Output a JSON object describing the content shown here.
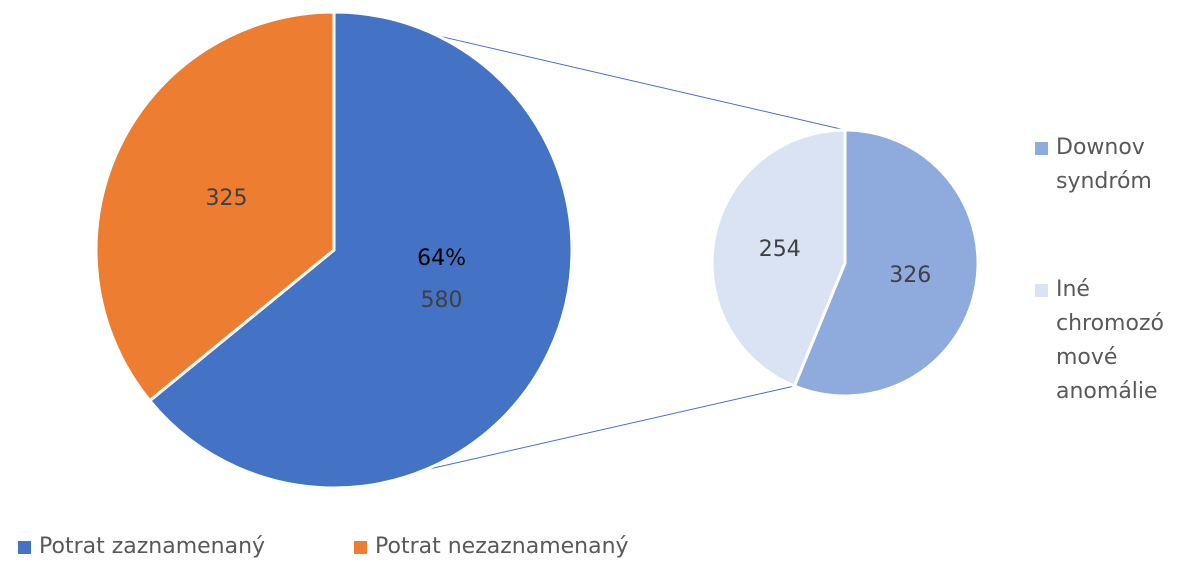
{
  "chart_data": [
    {
      "type": "pie",
      "categories": [
        "Potrat zaznamenaný",
        "Potrat nezaznamenaný"
      ],
      "values": [
        580,
        325
      ],
      "percent_labels": [
        "64%",
        null
      ],
      "colors": [
        "#4472c4",
        "#ed7d31"
      ],
      "legend": "bottom"
    },
    {
      "type": "pie",
      "categories": [
        "Downov syndróm",
        "Iné chromozómové anomálie"
      ],
      "values": [
        326,
        254
      ],
      "colors": [
        "#8faadc",
        "#dae3f3"
      ],
      "legend": "right"
    }
  ]
}
